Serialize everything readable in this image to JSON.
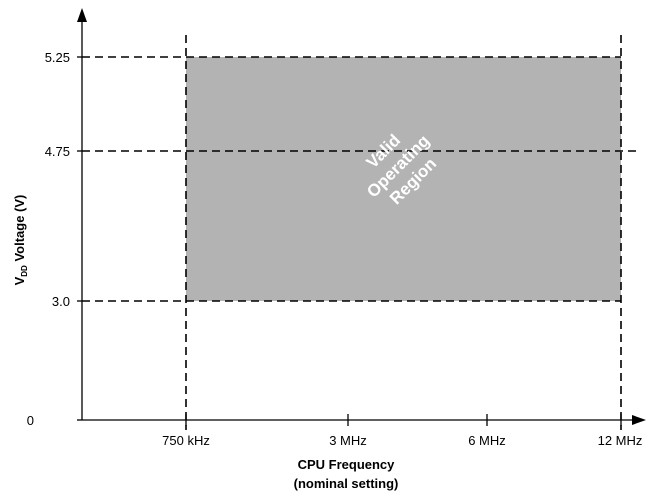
{
  "chart_data": {
    "type": "area",
    "x_ticks": [
      "750 kHz",
      "3 MHz",
      "6 MHz",
      "12 MHz"
    ],
    "y_ticks": [
      "0",
      "3.0",
      "4.75",
      "5.25"
    ],
    "xlabel_line1": "CPU Frequency",
    "xlabel_line2": "(nominal setting)",
    "ylabel_prefix": "V",
    "ylabel_subscript": "DD",
    "ylabel_suffix": " Voltage (V)",
    "region": {
      "label_lines": [
        "Valid",
        "Operating",
        "Region"
      ],
      "x_range": [
        "750 kHz",
        "12 MHz"
      ],
      "y_range": [
        3.0,
        5.25
      ],
      "color": "#b3b3b3"
    },
    "dashed_guides": {
      "horizontal": [
        3.0,
        4.75,
        5.25
      ],
      "vertical": [
        "750 kHz",
        "12 MHz"
      ]
    },
    "grid": false
  }
}
